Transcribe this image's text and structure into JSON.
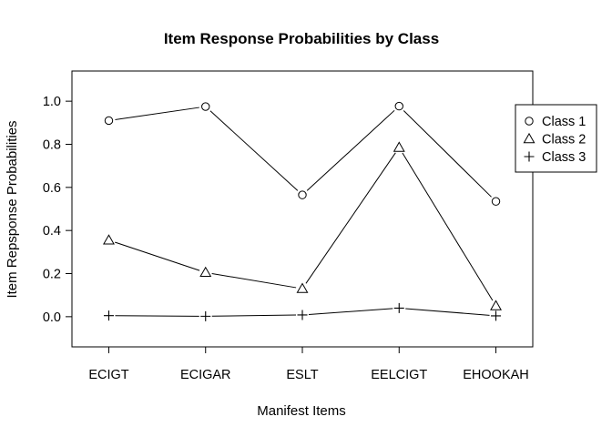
{
  "chart_data": {
    "type": "line",
    "title": "Item Response Probabilities by Class",
    "xlabel": "Manifest Items",
    "ylabel": "Item Repsponse Probabilities",
    "categories": [
      "ECIGT",
      "ECIGAR",
      "ESLT",
      "EELCIGT",
      "EHOOKAH"
    ],
    "ylim": [
      -0.14,
      1.14
    ],
    "yticks": [
      "0.0",
      "0.2",
      "0.4",
      "0.6",
      "0.8",
      "1.0"
    ],
    "grid": false,
    "legend_position": "right",
    "series": [
      {
        "name": "Class 1",
        "marker": "circle",
        "values": [
          0.91,
          0.975,
          0.565,
          0.977,
          0.535
        ]
      },
      {
        "name": "Class 2",
        "marker": "triangle",
        "values": [
          0.355,
          0.205,
          0.13,
          0.785,
          0.05
        ]
      },
      {
        "name": "Class 3",
        "marker": "plus",
        "values": [
          0.005,
          0.002,
          0.008,
          0.04,
          0.004
        ]
      }
    ]
  }
}
